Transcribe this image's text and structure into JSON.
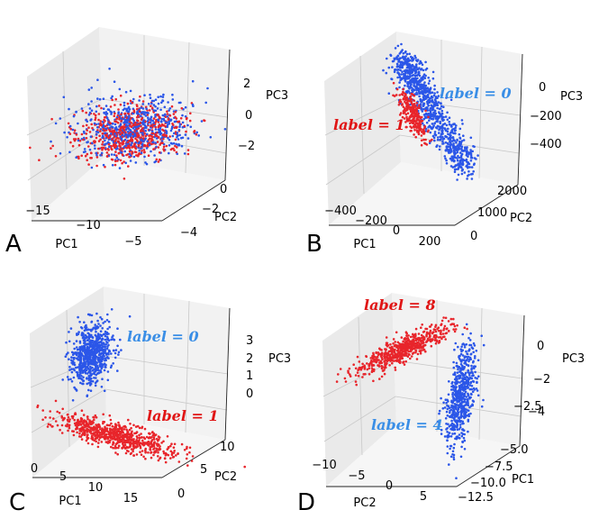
{
  "colors": {
    "red": "#e8252b",
    "blue": "#2b56e8",
    "label_blue": "#3a8ee6",
    "label_red": "#e01515"
  },
  "chart_data": [
    {
      "panel": "A",
      "type": "scatter3d",
      "xlabel": "PC1",
      "ylabel": "PC2",
      "zlabel": "PC3",
      "xticks": [
        "−15",
        "−10",
        "−5"
      ],
      "yticks": [
        "0",
        "−2",
        "−4"
      ],
      "zticks": [
        "2",
        "0",
        "−2"
      ],
      "series": [
        {
          "name": "red",
          "color": "#e8252b",
          "center": [
            -9,
            -1.5,
            -0.5
          ],
          "spread": [
            3.0,
            1.0,
            1.0
          ],
          "n": 600
        },
        {
          "name": "blue",
          "color": "#2b56e8",
          "center": [
            -8.5,
            -1.5,
            -0.5
          ],
          "spread": [
            3.0,
            1.0,
            1.0
          ],
          "n": 600
        }
      ],
      "annotations": []
    },
    {
      "panel": "B",
      "type": "scatter3d",
      "xlabel": "PC1",
      "ylabel": "PC2",
      "zlabel": "PC3",
      "xticks": [
        "−400",
        "−200",
        "0",
        "200"
      ],
      "yticks": [
        "2000",
        "1000",
        "0"
      ],
      "zticks": [
        "0",
        "−200",
        "−400"
      ],
      "series": [
        {
          "name": "label = 0",
          "color": "#2b56e8",
          "n": 900
        },
        {
          "name": "label = 1",
          "color": "#e8252b",
          "n": 300
        }
      ],
      "annotations": [
        {
          "text": "label = 0",
          "color": "#3a8ee6"
        },
        {
          "text": "label = 1",
          "color": "#e01515"
        }
      ]
    },
    {
      "panel": "C",
      "type": "scatter3d",
      "xlabel": "PC1",
      "ylabel": "PC2",
      "zlabel": "PC3",
      "xticks": [
        "0",
        "5",
        "10",
        "15"
      ],
      "yticks": [
        "10",
        "5",
        "0"
      ],
      "zticks": [
        "3",
        "2",
        "1",
        "0"
      ],
      "series": [
        {
          "name": "label = 0",
          "color": "#2b56e8",
          "n": 700
        },
        {
          "name": "label = 1",
          "color": "#e8252b",
          "n": 700
        }
      ],
      "annotations": [
        {
          "text": "label = 0",
          "color": "#3a8ee6"
        },
        {
          "text": "label = 1",
          "color": "#e01515"
        }
      ]
    },
    {
      "panel": "D",
      "type": "scatter3d",
      "xlabel": "PC2",
      "ylabel": "PC1",
      "zlabel": "PC3",
      "xticks": [
        "−10",
        "−5",
        "0",
        "5"
      ],
      "yticks": [
        "−2.5",
        "−5.0",
        "−7.5",
        "−10.0",
        "−12.5"
      ],
      "zticks": [
        "0",
        "−2",
        "−4"
      ],
      "series": [
        {
          "name": "label = 8",
          "color": "#e8252b",
          "n": 600
        },
        {
          "name": "label = 4",
          "color": "#2b56e8",
          "n": 600
        }
      ],
      "annotations": [
        {
          "text": "label = 8",
          "color": "#e01515"
        },
        {
          "text": "label = 4",
          "color": "#3a8ee6"
        }
      ]
    }
  ]
}
